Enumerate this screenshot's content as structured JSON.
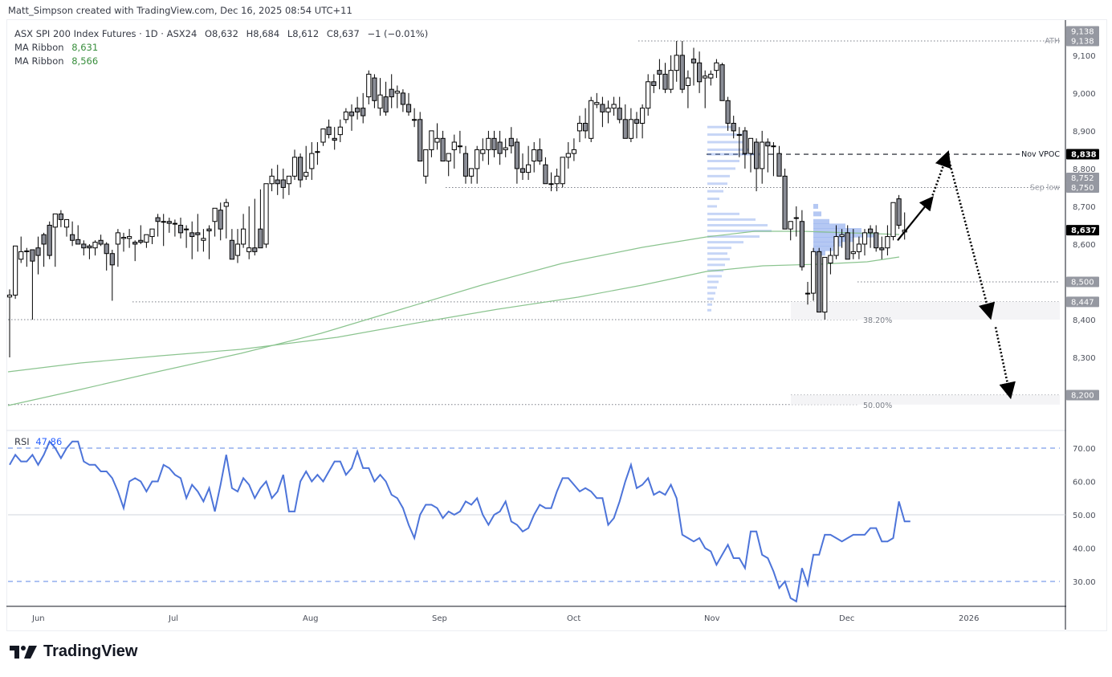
{
  "header": {
    "credit": "Matt_Simpson created with TradingView.com, Dec 16, 2025 08:54 UTC+11"
  },
  "legend": {
    "symbol": "ASX SPI 200 Index Futures · 1D · ASX24",
    "open": "O8,632",
    "high": "H8,684",
    "low": "L8,612",
    "close": "C8,637",
    "change": "−1 (−0.01%)",
    "ma1_label": "MA Ribbon",
    "ma1_value": "8,631",
    "ma2_label": "MA Ribbon",
    "ma2_value": "8,566"
  },
  "rsi_legend": {
    "label": "RSI",
    "value": "47.86"
  },
  "brand": {
    "name": "TradingView"
  },
  "colors": {
    "up_body": "#ffffff",
    "down_body": "#8a8d96",
    "wick": "#000000",
    "ma": "#8bc48f",
    "rsi": "#4d74d9",
    "vpvr": "#5b86e5",
    "axis_highlight": "#9598a1"
  },
  "chart_data": [
    {
      "type": "candlestick",
      "title": "ASX SPI 200 Index Futures · 1D · ASX24",
      "ylabel": "Price",
      "ylim": [
        8150,
        9180
      ],
      "y_ticks": [
        8200,
        8300,
        8400,
        8500,
        8600,
        8700,
        8800,
        8900,
        9000,
        9100
      ],
      "x_ticks": [
        "Jun",
        "Jul",
        "Aug",
        "Sep",
        "Oct",
        "Nov",
        "Dec",
        "2026"
      ],
      "last": {
        "open": 8632,
        "high": 8684,
        "low": 8612,
        "close": 8637,
        "change": -1,
        "change_pct": -0.01
      },
      "price_labels": [
        {
          "value": "9,138",
          "style": "grey"
        },
        {
          "value": "9,138",
          "style": "grey"
        },
        {
          "value": "8,838",
          "style": "black"
        },
        {
          "value": "8,752",
          "style": "grey"
        },
        {
          "value": "8,750",
          "style": "grey"
        },
        {
          "value": "8,637",
          "style": "black"
        },
        {
          "value": "8,500",
          "style": "grey"
        },
        {
          "value": "8,447",
          "style": "grey"
        },
        {
          "value": "8,200",
          "style": "grey"
        }
      ],
      "annotations": [
        {
          "label": "ATH",
          "price": 9138
        },
        {
          "label": "Nov VPOC",
          "price": 8838
        },
        {
          "label": "Sep low",
          "price": 8750
        },
        {
          "label": "38.20%",
          "price": 8400
        },
        {
          "label": "50.00%",
          "price": 8175
        }
      ],
      "horizontal_levels": [
        9138,
        8838,
        8752,
        8750,
        8500,
        8447,
        8400,
        8200,
        8175
      ],
      "ma_series": [
        {
          "name": "MA Ribbon (fast)",
          "last": 8631
        },
        {
          "name": "MA Ribbon (slow)",
          "last": 8566
        }
      ],
      "projection": [
        {
          "from": [
            1118,
            8610
          ],
          "to": [
            1160,
            8720
          ],
          "style": "solid"
        },
        {
          "from": [
            1160,
            8720
          ],
          "to": [
            1180,
            8838
          ],
          "style": "dotted"
        },
        {
          "from": [
            1180,
            8838
          ],
          "to": [
            1233,
            8410
          ],
          "style": "dotted"
        },
        {
          "from": [
            1240,
            8380
          ],
          "to": [
            1258,
            8200
          ],
          "style": "dotted"
        }
      ],
      "candles": [
        [
          8460,
          8480,
          8300,
          8465
        ],
        [
          8465,
          8590,
          8455,
          8595
        ],
        [
          8560,
          8620,
          8550,
          8580
        ],
        [
          8580,
          8590,
          8540,
          8582
        ],
        [
          8585,
          8565,
          8400,
          8555
        ],
        [
          8590,
          8620,
          8520,
          8570
        ],
        [
          8625,
          8630,
          8540,
          8600
        ],
        [
          8650,
          8660,
          8560,
          8570
        ],
        [
          8645,
          8660,
          8540,
          8680
        ],
        [
          8680,
          8690,
          8645,
          8665
        ],
        [
          8645,
          8660,
          8620,
          8665
        ],
        [
          8625,
          8660,
          8595,
          8610
        ],
        [
          8612,
          8650,
          8600,
          8600
        ],
        [
          8600,
          8610,
          8570,
          8590
        ],
        [
          8595,
          8600,
          8560,
          8590
        ],
        [
          8590,
          8610,
          8570,
          8605
        ],
        [
          8610,
          8625,
          8595,
          8600
        ],
        [
          8600,
          8605,
          8530,
          8575
        ],
        [
          8575,
          8585,
          8450,
          8545
        ],
        [
          8600,
          8640,
          8540,
          8630
        ],
        [
          8615,
          8630,
          8580,
          8618
        ],
        [
          8615,
          8640,
          8590,
          8620
        ],
        [
          8605,
          8610,
          8555,
          8600
        ],
        [
          8610,
          8650,
          8600,
          8605
        ],
        [
          8605,
          8620,
          8590,
          8625
        ],
        [
          8620,
          8640,
          8600,
          8640
        ],
        [
          8670,
          8680,
          8620,
          8660
        ],
        [
          8660,
          8680,
          8595,
          8658
        ],
        [
          8660,
          8670,
          8630,
          8655
        ],
        [
          8655,
          8665,
          8620,
          8655
        ],
        [
          8650,
          8670,
          8615,
          8630
        ],
        [
          8640,
          8650,
          8590,
          8640
        ],
        [
          8630,
          8660,
          8560,
          8620
        ],
        [
          8630,
          8680,
          8580,
          8625
        ],
        [
          8610,
          8640,
          8580,
          8615
        ],
        [
          8640,
          8650,
          8560,
          8635
        ],
        [
          8660,
          8680,
          8620,
          8695
        ],
        [
          8690,
          8710,
          8610,
          8640
        ],
        [
          8700,
          8720,
          8615,
          8710
        ],
        [
          8610,
          8640,
          8580,
          8560
        ],
        [
          8570,
          8640,
          8550,
          8600
        ],
        [
          8600,
          8680,
          8590,
          8640
        ],
        [
          8580,
          8700,
          8560,
          8590
        ],
        [
          8590,
          8720,
          8570,
          8580
        ],
        [
          8640,
          8745,
          8620,
          8590
        ],
        [
          8600,
          8760,
          8590,
          8760
        ],
        [
          8760,
          8800,
          8740,
          8780
        ],
        [
          8770,
          8810,
          8730,
          8760
        ],
        [
          8770,
          8800,
          8720,
          8750
        ],
        [
          8760,
          8780,
          8730,
          8780
        ],
        [
          8780,
          8850,
          8770,
          8830
        ],
        [
          8830,
          8840,
          8750,
          8770
        ],
        [
          8780,
          8860,
          8770,
          8790
        ],
        [
          8800,
          8870,
          8770,
          8840
        ],
        [
          8845,
          8870,
          8810,
          8845
        ],
        [
          8870,
          8900,
          8860,
          8905
        ],
        [
          8910,
          8930,
          8880,
          8890
        ],
        [
          8880,
          8910,
          8850,
          8875
        ],
        [
          8890,
          8930,
          8870,
          8910
        ],
        [
          8930,
          8960,
          8920,
          8950
        ],
        [
          8950,
          8970,
          8900,
          8940
        ],
        [
          8960,
          8990,
          8930,
          8950
        ],
        [
          8960,
          9000,
          8920,
          8940
        ],
        [
          8990,
          9060,
          8970,
          9050
        ],
        [
          9040,
          9050,
          8960,
          8980
        ],
        [
          8960,
          9040,
          8940,
          8995
        ],
        [
          8990,
          9030,
          8940,
          8950
        ],
        [
          9010,
          9050,
          8960,
          8990
        ],
        [
          9000,
          9020,
          8960,
          9005
        ],
        [
          9000,
          9010,
          8950,
          8970
        ],
        [
          8970,
          9000,
          8940,
          8950
        ],
        [
          8930,
          8960,
          8910,
          8930
        ],
        [
          8930,
          8950,
          8900,
          8820
        ],
        [
          8780,
          8850,
          8760,
          8850
        ],
        [
          8850,
          8900,
          8830,
          8900
        ],
        [
          8870,
          8920,
          8850,
          8880
        ],
        [
          8880,
          8900,
          8820,
          8820
        ],
        [
          8820,
          8840,
          8780,
          8840
        ],
        [
          8850,
          8890,
          8800,
          8870
        ],
        [
          8860,
          8900,
          8840,
          8860
        ],
        [
          8840,
          8860,
          8760,
          8780
        ],
        [
          8780,
          8800,
          8760,
          8800
        ],
        [
          8800,
          8860,
          8760,
          8850
        ],
        [
          8840,
          8880,
          8820,
          8850
        ],
        [
          8850,
          8900,
          8810,
          8880
        ],
        [
          8880,
          8900,
          8830,
          8850
        ],
        [
          8870,
          8900,
          8810,
          8840
        ],
        [
          8850,
          8880,
          8830,
          8855
        ],
        [
          8880,
          8910,
          8840,
          8860
        ],
        [
          8870,
          8880,
          8760,
          8800
        ],
        [
          8800,
          8840,
          8770,
          8790
        ],
        [
          8790,
          8860,
          8770,
          8810
        ],
        [
          8820,
          8870,
          8790,
          8850
        ],
        [
          8850,
          8880,
          8810,
          8820
        ],
        [
          8810,
          8830,
          8760,
          8760
        ],
        [
          8760,
          8790,
          8740,
          8760
        ],
        [
          8760,
          8800,
          8740,
          8780
        ],
        [
          8760,
          8830,
          8750,
          8830
        ],
        [
          8830,
          8870,
          8800,
          8840
        ],
        [
          8840,
          8880,
          8820,
          8850
        ],
        [
          8900,
          8940,
          8870,
          8920
        ],
        [
          8920,
          8960,
          8880,
          8900
        ],
        [
          8880,
          8990,
          8870,
          8980
        ],
        [
          8970,
          9000,
          8960,
          8975
        ],
        [
          8970,
          8990,
          8910,
          8950
        ],
        [
          8950,
          8980,
          8920,
          8960
        ],
        [
          8960,
          8990,
          8940,
          8970
        ],
        [
          8960,
          8990,
          8920,
          8930
        ],
        [
          8930,
          8970,
          8890,
          8880
        ],
        [
          8880,
          8960,
          8870,
          8930
        ],
        [
          8930,
          8950,
          8880,
          8920
        ],
        [
          8920,
          8970,
          8880,
          8960
        ],
        [
          8960,
          9050,
          8940,
          9030
        ],
        [
          9030,
          9050,
          9000,
          9020
        ],
        [
          9060,
          9090,
          9010,
          9050
        ],
        [
          9050,
          9080,
          9000,
          9010
        ],
        [
          9010,
          9100,
          9000,
          9060
        ],
        [
          9060,
          9138,
          9030,
          9100
        ],
        [
          9100,
          9138,
          9000,
          9010
        ],
        [
          9020,
          9060,
          8960,
          9040
        ],
        [
          9090,
          9120,
          9020,
          9080
        ],
        [
          9080,
          9110,
          9000,
          9030
        ],
        [
          9040,
          9060,
          8960,
          9045
        ],
        [
          9040,
          9060,
          9020,
          9050
        ],
        [
          9060,
          9090,
          9040,
          9080
        ],
        [
          9075,
          9080,
          9020,
          8980
        ],
        [
          8980,
          8990,
          8900,
          8920
        ],
        [
          8920,
          8940,
          8880,
          8900
        ],
        [
          8890,
          8910,
          8830,
          8890
        ],
        [
          8900,
          8910,
          8800,
          8840
        ],
        [
          8840,
          8880,
          8790,
          8880
        ],
        [
          8870,
          8880,
          8740,
          8800
        ],
        [
          8800,
          8900,
          8760,
          8870
        ],
        [
          8870,
          8880,
          8790,
          8860
        ],
        [
          8860,
          8870,
          8780,
          8860
        ],
        [
          8840,
          8860,
          8790,
          8780
        ],
        [
          8780,
          8800,
          8640,
          8640
        ],
        [
          8640,
          8660,
          8610,
          8660
        ],
        [
          8670,
          8700,
          8620,
          8670
        ],
        [
          8660,
          8690,
          8530,
          8540
        ],
        [
          8470,
          8500,
          8440,
          8470
        ],
        [
          8470,
          8590,
          8450,
          8580
        ],
        [
          8580,
          8590,
          8420,
          8420
        ],
        [
          8420,
          8560,
          8400,
          8565
        ],
        [
          8550,
          8590,
          8520,
          8570
        ],
        [
          8570,
          8650,
          8560,
          8620
        ],
        [
          8620,
          8640,
          8590,
          8625
        ],
        [
          8630,
          8650,
          8570,
          8560
        ],
        [
          8575,
          8640,
          8560,
          8580
        ],
        [
          8580,
          8620,
          8560,
          8600
        ],
        [
          8600,
          8640,
          8570,
          8630
        ],
        [
          8640,
          8650,
          8590,
          8630
        ],
        [
          8630,
          8650,
          8580,
          8590
        ],
        [
          8590,
          8620,
          8560,
          8585
        ],
        [
          8590,
          8650,
          8570,
          8620
        ],
        [
          8620,
          8700,
          8610,
          8710
        ],
        [
          8720,
          8730,
          8640,
          8650
        ],
        [
          8632,
          8684,
          8612,
          8637
        ]
      ]
    },
    {
      "type": "line",
      "title": "RSI",
      "last": 47.86,
      "ylim": [
        22,
        75
      ],
      "y_ticks": [
        30,
        40,
        50,
        60,
        70
      ],
      "bands": {
        "upper": 70,
        "middle": 50,
        "lower": 30
      },
      "values": [
        65,
        68,
        66,
        66,
        68,
        65,
        68,
        72,
        70,
        67,
        70,
        72,
        72,
        66,
        65,
        65,
        63,
        63,
        61,
        57,
        52,
        60,
        61,
        60,
        57,
        60,
        60,
        65,
        64,
        62,
        61,
        55,
        59,
        57,
        54,
        58,
        51,
        59,
        68,
        58,
        57,
        61,
        59,
        55,
        58,
        60,
        55,
        57,
        62,
        51,
        51,
        60,
        63,
        60,
        62,
        60,
        63,
        66,
        66,
        62,
        64,
        69,
        64,
        64,
        60,
        62,
        60,
        56,
        55,
        52,
        47,
        43,
        50,
        53,
        53,
        52,
        49,
        51,
        50,
        51,
        54,
        53,
        55,
        50,
        47,
        50,
        51,
        54,
        48,
        47,
        45,
        46,
        50,
        53,
        52,
        52,
        57,
        61,
        61,
        59,
        57,
        58,
        57,
        55,
        55,
        47,
        49,
        54,
        60,
        65,
        58,
        59,
        61,
        56,
        57,
        56,
        59,
        55,
        44,
        43,
        42,
        43,
        40,
        39,
        35,
        38,
        41,
        37,
        37,
        34,
        45,
        45,
        38,
        37,
        33,
        28,
        30,
        25,
        24,
        34,
        29,
        38,
        38,
        44,
        44,
        43,
        42,
        43,
        44,
        44,
        44,
        46,
        46,
        42,
        42,
        43,
        54,
        48,
        48
      ]
    }
  ]
}
